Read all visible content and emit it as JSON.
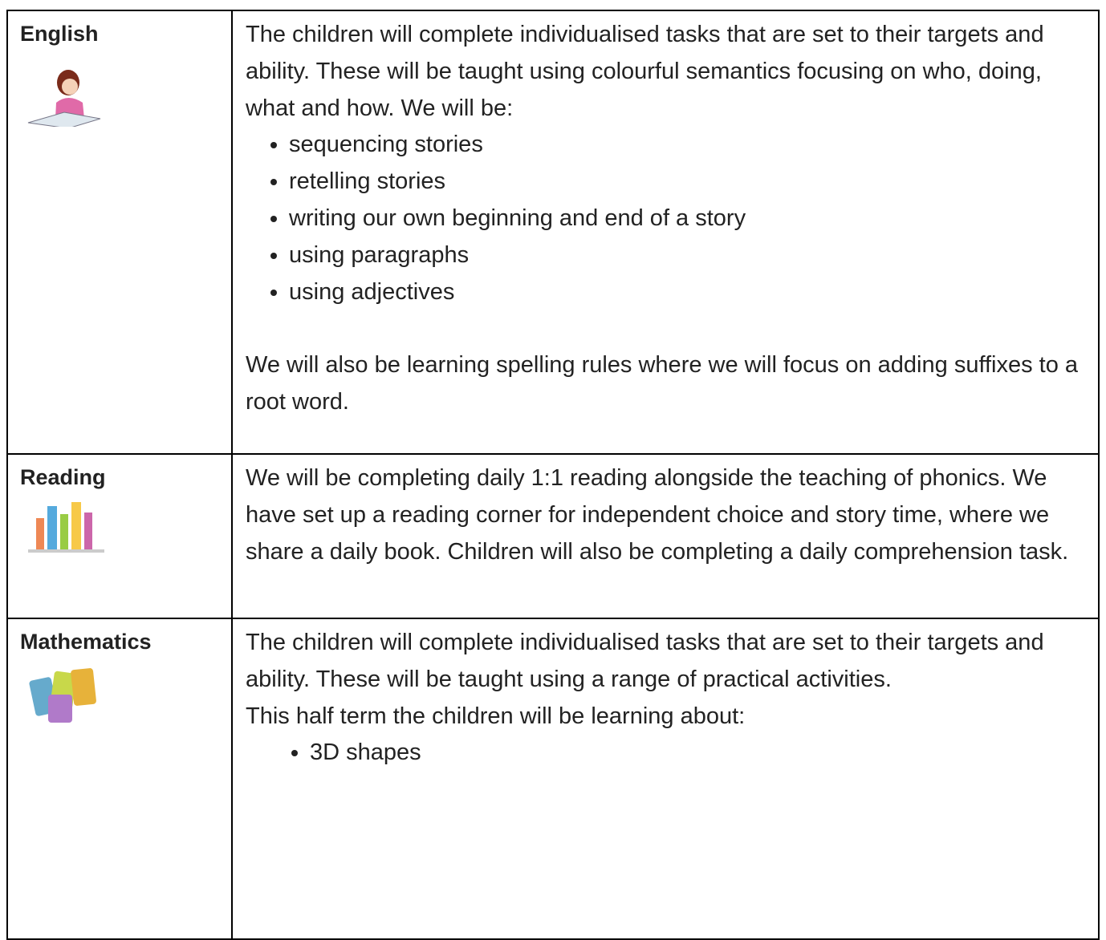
{
  "table": {
    "rows": [
      {
        "subject": "English",
        "blocks": [
          {
            "text": "The children will complete individualised tasks that are set to their targets and ability. These will be taught using colourful semantics focusing on who, doing, what and how. We will be:"
          },
          {
            "bullets": [
              "sequencing stories",
              "retelling stories",
              "writing our own beginning and end of a story",
              "using paragraphs",
              "using adjectives"
            ]
          },
          {
            "text": "We will also be learning spelling rules where we will focus on adding suffixes to a root word."
          }
        ]
      },
      {
        "subject": "Reading",
        "blocks": [
          {
            "text": "We will be completing daily 1:1 reading alongside the teaching of phonics. We have set up a reading corner for independent choice and story time, where we share a daily book. Children will also be completing a daily comprehension task."
          }
        ]
      },
      {
        "subject": "Mathematics",
        "blocks": [
          {
            "text": "The children will complete individualised tasks that are set to their targets and ability. These will be taught using a range of practical activities."
          },
          {
            "text": "This half term the children will be learning about:"
          },
          {
            "bullets": [
              "3D shapes"
            ]
          }
        ]
      }
    ]
  }
}
